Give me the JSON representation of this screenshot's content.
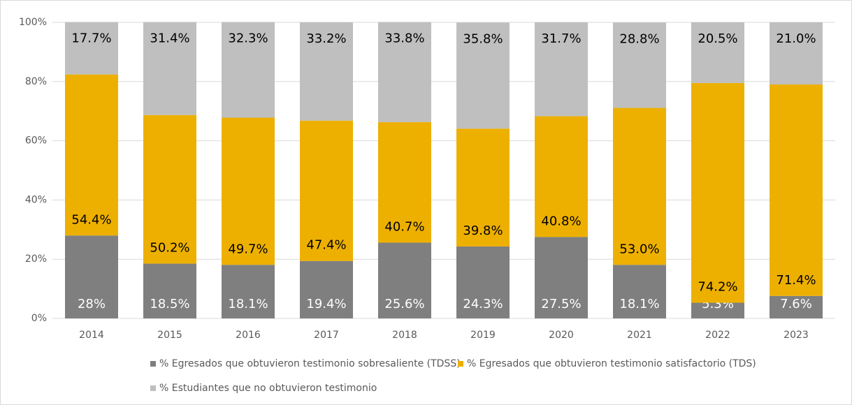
{
  "chart_data": {
    "type": "stacked_bar",
    "categories": [
      "2014",
      "2015",
      "2016",
      "2017",
      "2018",
      "2019",
      "2020",
      "2021",
      "2022",
      "2023"
    ],
    "series": [
      {
        "name": "% Egresados que obtuvieron testimonio sobresaliente (TDSS)",
        "color": "#7f7f7f",
        "values": [
          28,
          18.5,
          18.1,
          19.4,
          25.6,
          24.3,
          27.5,
          18.1,
          5.3,
          7.6
        ],
        "value_labels": [
          "28%",
          "18.5%",
          "18.1%",
          "19.4%",
          "25.6%",
          "24.3%",
          "27.5%",
          "18.1%",
          "5.3%",
          "7.6%"
        ]
      },
      {
        "name": "% Egresados que obtuvieron testimonio satisfactorio (TDS)",
        "color": "#edb000",
        "values": [
          54.4,
          50.2,
          49.7,
          47.4,
          40.7,
          39.8,
          40.8,
          53.0,
          74.2,
          71.4
        ],
        "value_labels": [
          "54.4%",
          "50.2%",
          "49.7%",
          "47.4%",
          "40.7%",
          "39.8%",
          "40.8%",
          "53.0%",
          "74.2%",
          "71.4%"
        ]
      },
      {
        "name": "% Estudiantes que no obtuvieron testimonio",
        "color": "#bfbfbf",
        "values": [
          17.7,
          31.4,
          32.3,
          33.2,
          33.8,
          35.8,
          31.7,
          28.8,
          20.5,
          21.0
        ],
        "value_labels": [
          "17.7%",
          "31.4%",
          "32.3%",
          "33.2%",
          "33.8%",
          "35.8%",
          "31.7%",
          "28.8%",
          "20.5%",
          "21.0%"
        ]
      }
    ],
    "ylim": [
      0,
      100
    ],
    "yticks": [
      {
        "value": 0,
        "label": "0%"
      },
      {
        "value": 20,
        "label": "20%"
      },
      {
        "value": 40,
        "label": "40%"
      },
      {
        "value": 60,
        "label": "60%"
      },
      {
        "value": 80,
        "label": "80%"
      },
      {
        "value": 100,
        "label": "100%"
      }
    ],
    "grid": true,
    "legend": "bottom"
  }
}
